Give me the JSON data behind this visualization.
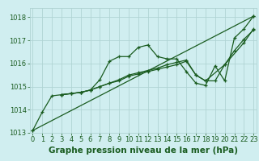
{
  "xlabel": "Graphe pression niveau de la mer (hPa)",
  "ylim": [
    1013.0,
    1018.4
  ],
  "xlim": [
    -0.3,
    23.3
  ],
  "yticks": [
    1013,
    1014,
    1015,
    1016,
    1017,
    1018
  ],
  "xticks": [
    0,
    1,
    2,
    3,
    4,
    5,
    6,
    7,
    8,
    9,
    10,
    11,
    12,
    13,
    14,
    15,
    16,
    17,
    18,
    19,
    20,
    21,
    22,
    23
  ],
  "bg_color": "#d0eef0",
  "grid_color": "#b0d4d4",
  "line_color": "#1a5c20",
  "lines": [
    {
      "x": [
        0,
        1,
        2,
        3,
        4,
        5,
        6,
        7,
        8,
        9,
        10,
        11,
        12,
        13,
        14,
        15,
        16,
        17,
        18,
        19,
        20,
        21,
        22,
        23
      ],
      "y": [
        1013.1,
        1013.9,
        1014.6,
        1014.65,
        1014.7,
        1014.75,
        1014.85,
        1015.3,
        1016.1,
        1016.3,
        1016.3,
        1016.7,
        1016.8,
        1016.3,
        1016.2,
        1016.2,
        1015.65,
        1015.15,
        1015.05,
        1015.9,
        1015.25,
        1017.1,
        1017.5,
        1018.05
      ]
    },
    {
      "x": [
        0,
        23
      ],
      "y": [
        1013.1,
        1018.05
      ]
    },
    {
      "x": [
        3,
        4,
        5,
        6,
        7,
        8,
        9,
        10,
        11,
        12,
        13,
        14,
        15,
        16,
        17,
        18,
        20,
        22,
        23
      ],
      "y": [
        1014.65,
        1014.7,
        1014.75,
        1014.85,
        1015.0,
        1015.15,
        1015.3,
        1015.5,
        1015.6,
        1015.7,
        1015.8,
        1015.95,
        1016.05,
        1016.15,
        1015.5,
        1015.25,
        1015.95,
        1016.9,
        1017.5
      ]
    },
    {
      "x": [
        3,
        4,
        5,
        6,
        7,
        8,
        9,
        10,
        11,
        12,
        13,
        14,
        15,
        16,
        17,
        18,
        19,
        20,
        21,
        22,
        23
      ],
      "y": [
        1014.65,
        1014.7,
        1014.75,
        1014.85,
        1015.0,
        1015.15,
        1015.25,
        1015.45,
        1015.55,
        1015.65,
        1015.75,
        1015.85,
        1015.95,
        1016.1,
        1015.5,
        1015.25,
        1015.25,
        1015.95,
        1016.55,
        1017.05,
        1017.45
      ]
    }
  ],
  "font_color": "#1a5c20",
  "tick_fontsize": 6,
  "label_fontsize": 7.5
}
